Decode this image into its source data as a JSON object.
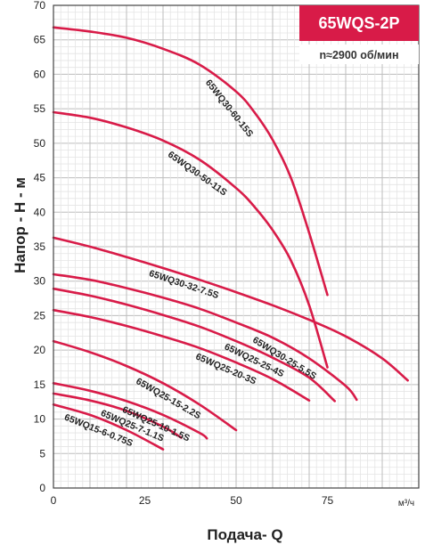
{
  "chart_data": {
    "type": "line",
    "title": "65WQS-2P",
    "subtitle": "n≈2900 об/мин",
    "xlabel": "Подача- Q",
    "x_unit": "м³/ч",
    "ylabel": "Напор - H - м",
    "xlim": [
      0,
      100
    ],
    "ylim": [
      0,
      70
    ],
    "x_ticks": [
      0,
      25,
      50,
      75
    ],
    "y_ticks": [
      0,
      5,
      10,
      15,
      20,
      25,
      30,
      35,
      40,
      45,
      50,
      55,
      60,
      65,
      70
    ],
    "grid": true,
    "accent_color": "#d81b48",
    "series": [
      {
        "name": "65WQ30-60-15S",
        "x": [
          0,
          10,
          20,
          30,
          40,
          50,
          55,
          60,
          65,
          70,
          75
        ],
        "y": [
          66.8,
          66.2,
          65.3,
          63.7,
          61.4,
          57.5,
          54.5,
          50.5,
          45.0,
          37.0,
          28.0
        ]
      },
      {
        "name": "65WQ30-50-11S",
        "x": [
          0,
          10,
          20,
          30,
          40,
          50,
          55,
          60,
          65,
          70,
          75
        ],
        "y": [
          54.5,
          53.7,
          52.3,
          50.4,
          47.6,
          43.5,
          40.8,
          37.4,
          33.0,
          26.5,
          17.5
        ]
      },
      {
        "name": "65WQ30-32-7.5S",
        "x": [
          0,
          10,
          20,
          30,
          40,
          50,
          60,
          70,
          80,
          90,
          97
        ],
        "y": [
          36.3,
          35.0,
          33.5,
          31.9,
          30.2,
          28.4,
          26.5,
          24.4,
          22.0,
          18.8,
          15.6
        ]
      },
      {
        "name": "65WQ30-25-5.5S",
        "x": [
          0,
          10,
          20,
          30,
          40,
          50,
          60,
          70,
          80,
          83
        ],
        "y": [
          31.0,
          30.2,
          29.0,
          27.6,
          26.0,
          24.0,
          21.8,
          18.8,
          14.8,
          12.8
        ]
      },
      {
        "name": "65WQ25-25-4S",
        "x": [
          0,
          10,
          20,
          30,
          40,
          50,
          60,
          70,
          77
        ],
        "y": [
          28.9,
          27.9,
          26.6,
          25.1,
          23.4,
          21.3,
          18.9,
          16.0,
          12.6
        ]
      },
      {
        "name": "65WQ25-20-3S",
        "x": [
          0,
          10,
          20,
          30,
          40,
          50,
          60,
          70
        ],
        "y": [
          25.8,
          24.8,
          23.5,
          22.0,
          20.3,
          18.2,
          15.8,
          12.7
        ]
      },
      {
        "name": "65WQ25-15-2.2S",
        "x": [
          0,
          10,
          20,
          30,
          40,
          50
        ],
        "y": [
          21.3,
          19.7,
          17.7,
          15.2,
          12.1,
          8.4
        ]
      },
      {
        "name": "65WQ25-10-1.5S",
        "x": [
          0,
          10,
          20,
          30,
          40,
          42
        ],
        "y": [
          15.2,
          14.1,
          12.6,
          10.6,
          8.0,
          7.2
        ]
      },
      {
        "name": "65WQ25-7-1.1S",
        "x": [
          0,
          10,
          20,
          30,
          35
        ],
        "y": [
          13.7,
          12.7,
          11.2,
          8.9,
          7.3
        ]
      },
      {
        "name": "65WQ15-6-0.75S",
        "x": [
          0,
          10,
          20,
          30
        ],
        "y": [
          12.1,
          10.6,
          8.4,
          5.6
        ]
      }
    ]
  }
}
